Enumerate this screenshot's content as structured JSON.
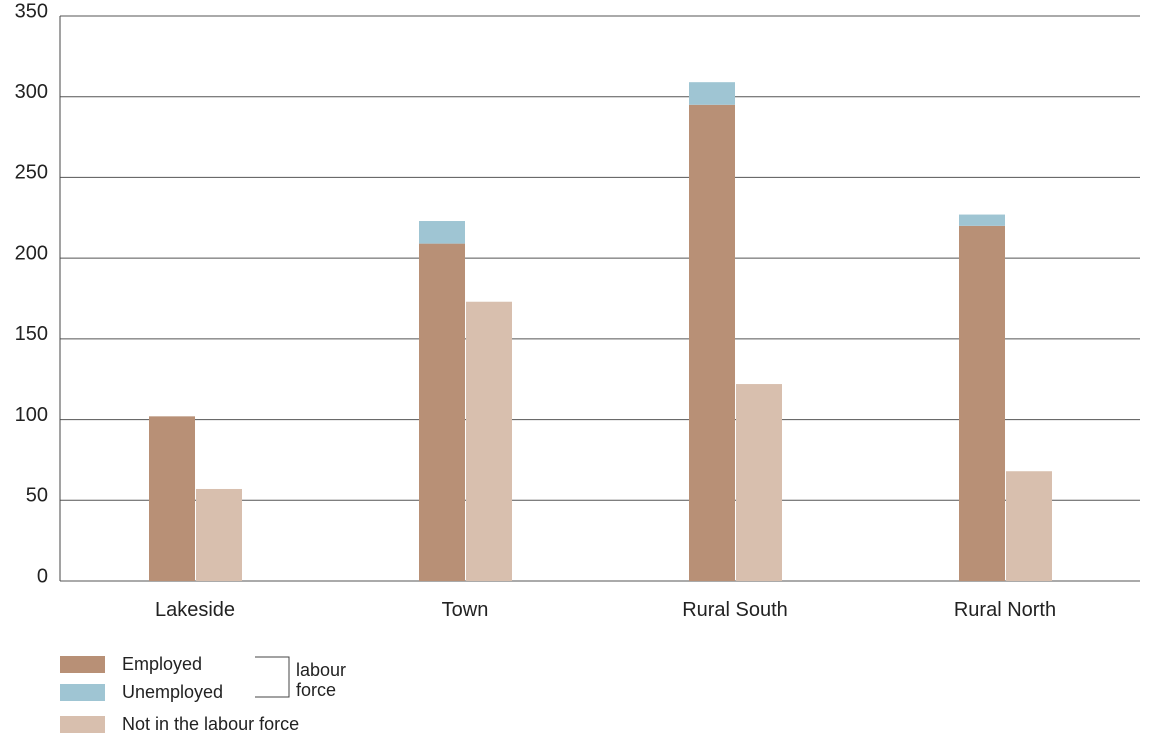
{
  "chart_data": {
    "type": "bar",
    "categories": [
      "Lakeside",
      "Town",
      "Rural South",
      "Rural North"
    ],
    "series": [
      {
        "name": "Employed",
        "color": "#b89076",
        "stack": 0,
        "values": [
          102,
          209,
          295,
          220
        ]
      },
      {
        "name": "Unemployed",
        "color": "#9fc5d3",
        "stack": 0,
        "values": [
          0,
          14,
          14,
          7
        ]
      },
      {
        "name": "Not in the labour force",
        "color": "#d8bfae",
        "stack": 1,
        "values": [
          57,
          173,
          122,
          68
        ]
      }
    ],
    "annotation": "labour force",
    "ylim": [
      0,
      350
    ],
    "yticks": [
      0,
      50,
      100,
      150,
      200,
      250,
      300,
      350
    ],
    "grid": true
  }
}
